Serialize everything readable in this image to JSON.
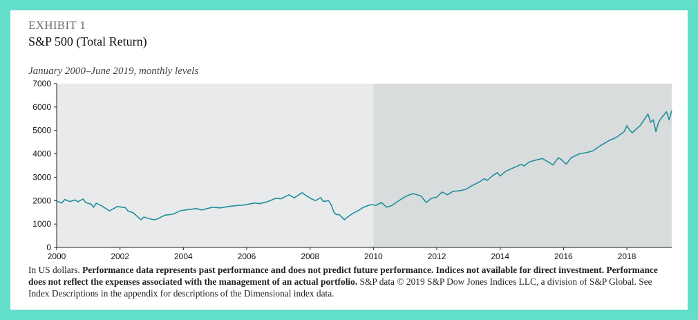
{
  "header": {
    "exhibit": "EXHIBIT 1",
    "title": "S&P 500 (Total Return)",
    "subtitle": "January 2000–June 2019, monthly levels"
  },
  "footnote": {
    "part1": "In US dollars. ",
    "part2": "Performance data represents past performance and does not predict future performance. Indices not available for direct investment. Performance does not reflect the expenses associated with the management of an actual portfolio.",
    "part3": " S&P data © 2019 S&P Dow Jones Indices LLC, a division of S&P Global. See Index Descriptions in the appendix for descriptions of the Dimensional index data."
  },
  "colors": {
    "background": "#62dfc9",
    "plot_left": "#e8eaeb",
    "plot_right": "#d9dcdd",
    "line": "#1f8f9c"
  },
  "chart_data": {
    "type": "line",
    "title": "S&P 500 (Total Return)",
    "subtitle": "January 2000–June 2019, monthly levels",
    "xlabel": "",
    "ylabel": "",
    "xlim": [
      "2000-01",
      "2019-06"
    ],
    "ylim": [
      0,
      7000
    ],
    "yticks": [
      "0",
      "1000",
      "2000",
      "3000",
      "4000",
      "5000",
      "6000",
      "7000"
    ],
    "xticks": [
      "2000",
      "2002",
      "2004",
      "2006",
      "2008",
      "2010",
      "2012",
      "2014",
      "2016",
      "2018"
    ],
    "shaded_regions": [
      {
        "from": "2010-01",
        "to": "2019-06"
      }
    ],
    "grid": false,
    "series": [
      {
        "points": [
          [
            "2000-01",
            1980
          ],
          [
            "2000-03",
            1900
          ],
          [
            "2000-04",
            2050
          ],
          [
            "2000-06",
            1960
          ],
          [
            "2000-08",
            2030
          ],
          [
            "2000-09",
            1950
          ],
          [
            "2000-11",
            2070
          ],
          [
            "2000-12",
            1920
          ],
          [
            "2001-02",
            1850
          ],
          [
            "2001-03",
            1720
          ],
          [
            "2001-04",
            1890
          ],
          [
            "2001-06",
            1780
          ],
          [
            "2001-09",
            1560
          ],
          [
            "2001-12",
            1750
          ],
          [
            "2002-03",
            1700
          ],
          [
            "2002-04",
            1560
          ],
          [
            "2002-06",
            1480
          ],
          [
            "2002-07",
            1380
          ],
          [
            "2002-09",
            1180
          ],
          [
            "2002-10",
            1300
          ],
          [
            "2002-12",
            1230
          ],
          [
            "2003-02",
            1180
          ],
          [
            "2003-03",
            1210
          ],
          [
            "2003-06",
            1380
          ],
          [
            "2003-09",
            1420
          ],
          [
            "2003-12",
            1570
          ],
          [
            "2004-03",
            1620
          ],
          [
            "2004-06",
            1660
          ],
          [
            "2004-08",
            1600
          ],
          [
            "2004-12",
            1720
          ],
          [
            "2005-03",
            1690
          ],
          [
            "2005-06",
            1750
          ],
          [
            "2005-09",
            1790
          ],
          [
            "2005-12",
            1810
          ],
          [
            "2006-04",
            1900
          ],
          [
            "2006-06",
            1870
          ],
          [
            "2006-09",
            1960
          ],
          [
            "2006-12",
            2100
          ],
          [
            "2007-02",
            2080
          ],
          [
            "2007-05",
            2250
          ],
          [
            "2007-07",
            2120
          ],
          [
            "2007-10",
            2340
          ],
          [
            "2007-11",
            2250
          ],
          [
            "2008-01",
            2110
          ],
          [
            "2008-03",
            2000
          ],
          [
            "2008-05",
            2130
          ],
          [
            "2008-06",
            1960
          ],
          [
            "2008-08",
            2000
          ],
          [
            "2008-09",
            1820
          ],
          [
            "2008-10",
            1510
          ],
          [
            "2008-11",
            1400
          ],
          [
            "2008-12",
            1410
          ],
          [
            "2009-02",
            1180
          ],
          [
            "2009-03",
            1280
          ],
          [
            "2009-05",
            1440
          ],
          [
            "2009-07",
            1560
          ],
          [
            "2009-09",
            1700
          ],
          [
            "2009-11",
            1790
          ],
          [
            "2009-12",
            1830
          ],
          [
            "2010-02",
            1800
          ],
          [
            "2010-04",
            1920
          ],
          [
            "2010-06",
            1720
          ],
          [
            "2010-08",
            1790
          ],
          [
            "2010-10",
            1950
          ],
          [
            "2010-12",
            2100
          ],
          [
            "2011-02",
            2220
          ],
          [
            "2011-04",
            2300
          ],
          [
            "2011-07",
            2200
          ],
          [
            "2011-09",
            1920
          ],
          [
            "2011-11",
            2100
          ],
          [
            "2012-01",
            2150
          ],
          [
            "2012-03",
            2370
          ],
          [
            "2012-05",
            2250
          ],
          [
            "2012-07",
            2390
          ],
          [
            "2012-10",
            2430
          ],
          [
            "2012-12",
            2480
          ],
          [
            "2013-02",
            2620
          ],
          [
            "2013-05",
            2790
          ],
          [
            "2013-07",
            2940
          ],
          [
            "2013-08",
            2860
          ],
          [
            "2013-10",
            3050
          ],
          [
            "2013-12",
            3200
          ],
          [
            "2014-01",
            3050
          ],
          [
            "2014-03",
            3250
          ],
          [
            "2014-06",
            3400
          ],
          [
            "2014-09",
            3550
          ],
          [
            "2014-10",
            3480
          ],
          [
            "2014-12",
            3650
          ],
          [
            "2015-02",
            3720
          ],
          [
            "2015-05",
            3800
          ],
          [
            "2015-08",
            3600
          ],
          [
            "2015-09",
            3520
          ],
          [
            "2015-11",
            3830
          ],
          [
            "2015-12",
            3770
          ],
          [
            "2016-02",
            3560
          ],
          [
            "2016-04",
            3840
          ],
          [
            "2016-07",
            4000
          ],
          [
            "2016-10",
            4060
          ],
          [
            "2016-12",
            4120
          ],
          [
            "2017-03",
            4350
          ],
          [
            "2017-06",
            4550
          ],
          [
            "2017-09",
            4700
          ],
          [
            "2017-12",
            4950
          ],
          [
            "2018-01",
            5200
          ],
          [
            "2018-02",
            5020
          ],
          [
            "2018-03",
            4900
          ],
          [
            "2018-06",
            5200
          ],
          [
            "2018-09",
            5700
          ],
          [
            "2018-10",
            5350
          ],
          [
            "2018-11",
            5450
          ],
          [
            "2018-12",
            4950
          ],
          [
            "2019-01",
            5350
          ],
          [
            "2019-02",
            5520
          ],
          [
            "2019-04",
            5800
          ],
          [
            "2019-05",
            5450
          ],
          [
            "2019-06",
            5850
          ]
        ]
      }
    ]
  }
}
